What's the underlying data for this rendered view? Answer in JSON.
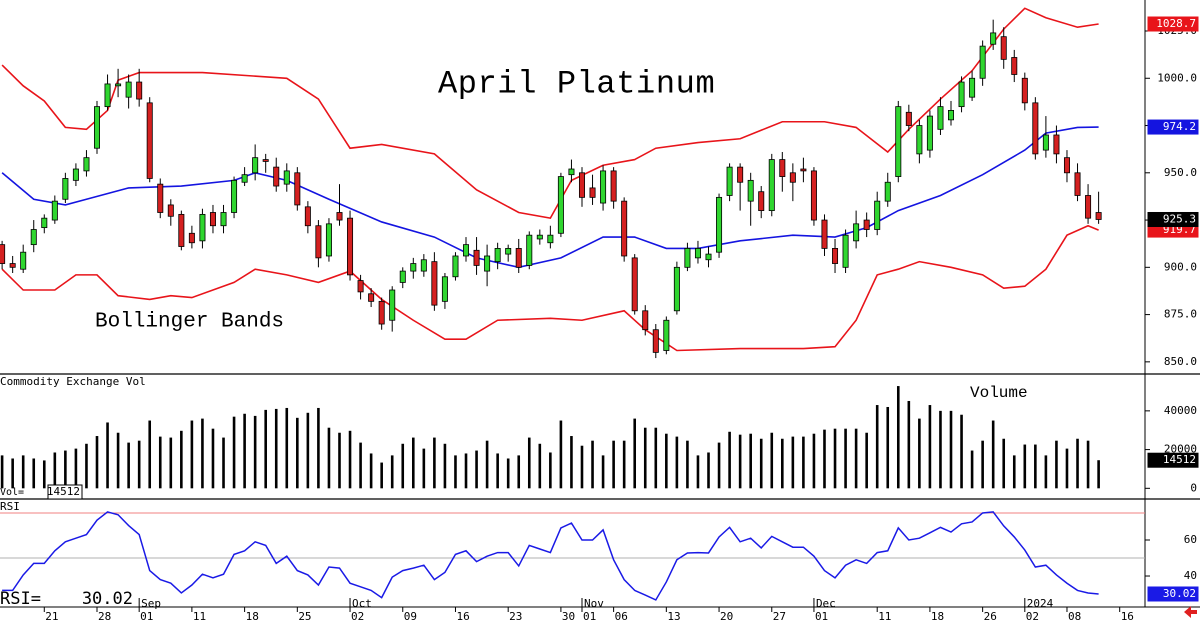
{
  "chart_data": [
    {
      "type": "candlestick",
      "title": "April Platinum",
      "annotation": "Bollinger Bands",
      "up_color": "#2fd62f",
      "down_color": "#d42020",
      "ylim": [
        844.1,
        1041.4
      ],
      "yticks": [
        {
          "value": 850,
          "label": "850.0"
        },
        {
          "value": 875,
          "label": "875.0"
        },
        {
          "value": 900,
          "label": "900.0"
        },
        {
          "value": 925,
          "label": "925.0"
        },
        {
          "value": 950,
          "label": "950.0"
        },
        {
          "value": 975,
          "label": "975.0"
        },
        {
          "value": 1000,
          "label": "1000.0"
        },
        {
          "value": 1025,
          "label": "1025.0"
        }
      ],
      "ohlc": [
        [
          912,
          914,
          899,
          902
        ],
        [
          902,
          906,
          897,
          900
        ],
        [
          899,
          912,
          897,
          908
        ],
        [
          912,
          925,
          908,
          920
        ],
        [
          921,
          928,
          918,
          926
        ],
        [
          925,
          938,
          923,
          935
        ],
        [
          936,
          950,
          934,
          947
        ],
        [
          946,
          955,
          943,
          952
        ],
        [
          951,
          962,
          948,
          958
        ],
        [
          963,
          988,
          960,
          985
        ],
        [
          985,
          1002,
          983,
          997
        ],
        [
          996,
          1005,
          990,
          997
        ],
        [
          990,
          1002,
          984,
          998
        ],
        [
          998,
          1005,
          985,
          989
        ],
        [
          987,
          990,
          945,
          947
        ],
        [
          944,
          947,
          926,
          929
        ],
        [
          933,
          936,
          922,
          927
        ],
        [
          928,
          930,
          909,
          911
        ],
        [
          918,
          922,
          910,
          913
        ],
        [
          914,
          931,
          910,
          928
        ],
        [
          929,
          933,
          918,
          922
        ],
        [
          922,
          933,
          918,
          929
        ],
        [
          929,
          948,
          926,
          946
        ],
        [
          945,
          953,
          943,
          949
        ],
        [
          950,
          965,
          946,
          958
        ],
        [
          957,
          960,
          950,
          956
        ],
        [
          953,
          958,
          940,
          943
        ],
        [
          944,
          955,
          940,
          951
        ],
        [
          950,
          953,
          930,
          933
        ],
        [
          932,
          935,
          918,
          922
        ],
        [
          922,
          925,
          900,
          905
        ],
        [
          906,
          926,
          903,
          923
        ],
        [
          929,
          944,
          922,
          925
        ],
        [
          926,
          930,
          893,
          896
        ],
        [
          893,
          896,
          883,
          887
        ],
        [
          886,
          889,
          879,
          882
        ],
        [
          882,
          884,
          867,
          870
        ],
        [
          872,
          890,
          866,
          888
        ],
        [
          892,
          900,
          889,
          898
        ],
        [
          898,
          905,
          894,
          902
        ],
        [
          898,
          907,
          895,
          904
        ],
        [
          903,
          908,
          877,
          880
        ],
        [
          882,
          897,
          878,
          895
        ],
        [
          895,
          908,
          893,
          906
        ],
        [
          906,
          916,
          903,
          912
        ],
        [
          909,
          916,
          896,
          901
        ],
        [
          898,
          912,
          890,
          906
        ],
        [
          903,
          913,
          899,
          910
        ],
        [
          907,
          912,
          903,
          910
        ],
        [
          910,
          915,
          897,
          900
        ],
        [
          901,
          919,
          899,
          917
        ],
        [
          915,
          920,
          912,
          917
        ],
        [
          913,
          922,
          910,
          917
        ],
        [
          918,
          950,
          916,
          948
        ],
        [
          949,
          957,
          945,
          952
        ],
        [
          950,
          953,
          932,
          937
        ],
        [
          942,
          949,
          933,
          937
        ],
        [
          934,
          954,
          930,
          951
        ],
        [
          951,
          953,
          931,
          935
        ],
        [
          935,
          937,
          903,
          906
        ],
        [
          905,
          907,
          875,
          877
        ],
        [
          877,
          880,
          864,
          867
        ],
        [
          867,
          870,
          852,
          855
        ],
        [
          856,
          874,
          854,
          872
        ],
        [
          877,
          903,
          875,
          900
        ],
        [
          900,
          913,
          898,
          910
        ],
        [
          905,
          914,
          902,
          910
        ],
        [
          904,
          911,
          900,
          907
        ],
        [
          908,
          939,
          905,
          937
        ],
        [
          938,
          955,
          935,
          953
        ],
        [
          953,
          955,
          930,
          945
        ],
        [
          935,
          950,
          922,
          946
        ],
        [
          940,
          943,
          926,
          930
        ],
        [
          930,
          960,
          927,
          957
        ],
        [
          957,
          961,
          940,
          948
        ],
        [
          950,
          955,
          935,
          945
        ],
        [
          952,
          958,
          945,
          951
        ],
        [
          951,
          953,
          922,
          925
        ],
        [
          925,
          928,
          906,
          910
        ],
        [
          910,
          915,
          897,
          902
        ],
        [
          900,
          920,
          897,
          917
        ],
        [
          914,
          930,
          910,
          923
        ],
        [
          925,
          929,
          916,
          920
        ],
        [
          920,
          940,
          917,
          935
        ],
        [
          935,
          950,
          932,
          945
        ],
        [
          948,
          988,
          945,
          985
        ],
        [
          982,
          986,
          972,
          975
        ],
        [
          960,
          978,
          955,
          975
        ],
        [
          962,
          983,
          958,
          980
        ],
        [
          973,
          990,
          970,
          985
        ],
        [
          978,
          988,
          975,
          983
        ],
        [
          985,
          1001,
          982,
          998
        ],
        [
          990,
          1004,
          988,
          1000
        ],
        [
          1000,
          1020,
          996,
          1017
        ],
        [
          1018,
          1031,
          1015,
          1024
        ],
        [
          1022,
          1027,
          1005,
          1010
        ],
        [
          1011,
          1015,
          998,
          1002
        ],
        [
          1000,
          1003,
          983,
          987
        ],
        [
          987,
          990,
          957,
          960
        ],
        [
          962,
          980,
          958,
          970
        ],
        [
          970,
          975,
          955,
          960
        ],
        [
          958,
          962,
          945,
          950
        ],
        [
          950,
          955,
          935,
          938
        ],
        [
          938,
          944,
          923,
          926
        ],
        [
          929,
          940,
          923,
          925.3
        ]
      ],
      "bands": [
        {
          "color": "#e8141a",
          "x": [
            0,
            2,
            4,
            6,
            8,
            10,
            11,
            13,
            19,
            27,
            30,
            33,
            36,
            41,
            45,
            49,
            52,
            54,
            57,
            60,
            62,
            66,
            70,
            74,
            78,
            81,
            84,
            86,
            89,
            92,
            95,
            97,
            99,
            102,
            104
          ],
          "values": [
            1007,
            996,
            988,
            974,
            973,
            983,
            999,
            1003,
            1003,
            1000,
            989,
            963,
            965,
            960,
            941,
            929,
            926,
            946,
            954,
            957,
            963,
            966,
            968,
            977,
            977,
            974,
            961,
            973,
            989,
            1004,
            1026,
            1037,
            1032,
            1027,
            1028.7
          ]
        },
        {
          "color": "#1414e0",
          "x": [
            0,
            3,
            6,
            8,
            12,
            17,
            22,
            24,
            27,
            31,
            36,
            41,
            45,
            49,
            53,
            57,
            60,
            63,
            66,
            70,
            75,
            79,
            82,
            85,
            89,
            93,
            97,
            99,
            102,
            104
          ],
          "values": [
            950,
            936,
            933,
            936,
            942,
            943,
            946,
            950,
            946,
            936,
            924,
            916,
            905,
            900,
            905,
            916,
            916,
            910,
            910,
            914,
            917,
            916,
            921,
            930,
            938,
            949,
            962,
            971,
            974,
            974.2
          ]
        },
        {
          "color": "#e8141a",
          "x": [
            0,
            2,
            5,
            7,
            9,
            11,
            14,
            16,
            18,
            22,
            24,
            27,
            30,
            33,
            36,
            39,
            42,
            44,
            47,
            52,
            55,
            59,
            61,
            64,
            70,
            76,
            79,
            81,
            83,
            85,
            87,
            90,
            93,
            95,
            97,
            99,
            101,
            103,
            104
          ],
          "values": [
            899,
            888,
            888,
            896,
            896,
            885,
            883,
            885,
            884,
            892,
            899,
            896,
            892,
            898,
            883,
            872,
            862,
            862,
            872,
            873,
            872,
            877,
            867,
            856,
            857,
            857,
            858,
            872,
            896,
            899,
            903,
            900,
            896,
            889,
            890,
            899,
            917,
            922,
            919.7
          ]
        }
      ]
    },
    {
      "type": "bar",
      "title": "Commodity Exchange Vol",
      "annotation": "Volume",
      "readout_label": "Vol=",
      "color": "#000000",
      "ylim": [
        -5000,
        58000
      ],
      "yticks": [
        0,
        20000,
        40000
      ],
      "values": [
        17000,
        15400,
        17000,
        15400,
        14400,
        18500,
        19500,
        20500,
        23000,
        27000,
        34000,
        28700,
        23600,
        24600,
        35000,
        26700,
        26200,
        29700,
        35000,
        36000,
        30800,
        26200,
        37000,
        38500,
        37400,
        40500,
        41000,
        41500,
        36400,
        39000,
        41500,
        31300,
        28700,
        29700,
        23600,
        18000,
        13300,
        17000,
        23000,
        26200,
        20500,
        26200,
        23000,
        17000,
        18000,
        19500,
        24600,
        18000,
        15400,
        17000,
        26200,
        23000,
        18500,
        35000,
        27000,
        22000,
        24600,
        17000,
        24600,
        24600,
        36000,
        31300,
        31300,
        28200,
        26700,
        24600,
        17000,
        18500,
        23600,
        29200,
        27700,
        28200,
        25600,
        28700,
        25600,
        26700,
        26700,
        28200,
        30300,
        30800,
        30800,
        30800,
        28700,
        43000,
        42000,
        52800,
        45100,
        36000,
        43000,
        40000,
        40000,
        38000,
        19500,
        24600,
        35000,
        25600,
        17000,
        22600,
        22600,
        17000,
        24600,
        20500,
        25600,
        24600,
        14512
      ]
    },
    {
      "type": "line",
      "title": "RSI",
      "readout_label": "RSI=",
      "color": "#1a1ae6",
      "ylim": [
        22.8,
        82.2
      ],
      "yticks": [
        40,
        60
      ],
      "levels": [
        {
          "value": 75,
          "color": "#f08080"
        },
        {
          "value": 50,
          "color": "#b0b0b0"
        }
      ],
      "values": [
        32,
        32,
        40.6,
        47,
        47,
        54,
        59,
        61,
        63,
        71,
        75.6,
        74,
        68,
        63,
        43,
        38,
        36,
        30.6,
        35,
        41,
        39,
        41,
        52,
        54,
        59,
        57,
        47,
        51,
        43,
        40.6,
        35,
        45,
        44.4,
        36,
        34,
        32,
        28,
        39.4,
        43,
        44.4,
        46,
        38,
        42,
        52,
        54,
        48,
        51,
        53,
        53,
        45.6,
        57,
        55,
        53,
        66.7,
        69.4,
        60,
        60,
        65.6,
        49,
        38,
        32,
        29.4,
        26.7,
        36.7,
        49,
        52.8,
        53,
        52.8,
        61.7,
        67,
        59,
        61,
        55.6,
        62,
        59,
        56,
        56,
        51,
        43,
        39,
        46,
        49,
        47,
        53,
        54,
        66.7,
        60,
        61,
        64,
        67,
        64.4,
        69,
        70,
        75,
        75.6,
        67.8,
        61.7,
        54.4,
        45,
        46,
        40.6,
        36,
        32,
        30.6,
        30.02
      ],
      "xlim": [
        -0.2,
        108.4
      ],
      "xticks": [
        {
          "value": 4,
          "label": "21"
        },
        {
          "value": 9,
          "label": "28"
        },
        {
          "value": 13,
          "label": "01"
        },
        {
          "value": 18,
          "label": "11"
        },
        {
          "value": 23,
          "label": "18"
        },
        {
          "value": 28,
          "label": "25"
        },
        {
          "value": 33,
          "label": "02"
        },
        {
          "value": 38,
          "label": "09"
        },
        {
          "value": 43,
          "label": "16"
        },
        {
          "value": 48,
          "label": "23"
        },
        {
          "value": 53,
          "label": "30"
        },
        {
          "value": 55,
          "label": "01"
        },
        {
          "value": 58,
          "label": "06"
        },
        {
          "value": 63,
          "label": "13"
        },
        {
          "value": 68,
          "label": "20"
        },
        {
          "value": 73,
          "label": "27"
        },
        {
          "value": 77,
          "label": "01"
        },
        {
          "value": 83,
          "label": "11"
        },
        {
          "value": 88,
          "label": "18"
        },
        {
          "value": 93,
          "label": "26"
        },
        {
          "value": 97,
          "label": "02"
        },
        {
          "value": 101,
          "label": "08"
        },
        {
          "value": 106,
          "label": "16"
        }
      ],
      "xmonths": [
        {
          "value": 13,
          "label": "Sep"
        },
        {
          "value": 33,
          "label": "Oct"
        },
        {
          "value": 55,
          "label": "Nov"
        },
        {
          "value": 77,
          "label": "Dec"
        },
        {
          "value": 97,
          "label": "2024"
        }
      ]
    }
  ]
}
